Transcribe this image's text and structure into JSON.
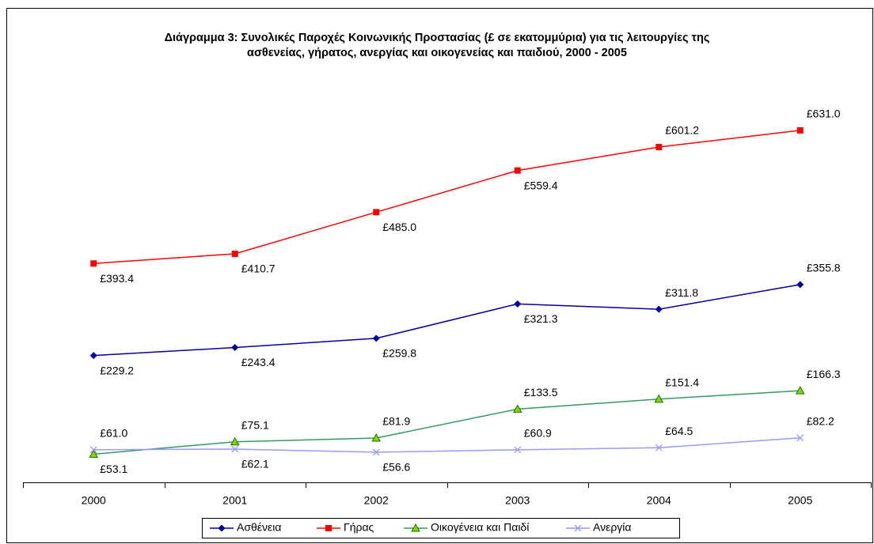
{
  "chart_data": {
    "type": "line",
    "title": [
      "Διάγραμμα 3: Συνολικές Παροχές Κοινωνικής Προστασίας (£ σε εκατομμύρια) για τις λειτουργίες της",
      "ασθενείας, γήρατος, ανεργίας και οικογενείας και παιδιού, 2000 - 2005"
    ],
    "categories": [
      "2000",
      "2001",
      "2002",
      "2003",
      "2004",
      "2005"
    ],
    "ylim": [
      0,
      700
    ],
    "series": [
      {
        "name": "Ασθένεια",
        "color": "#0000a0",
        "values": [
          229.2,
          243.4,
          259.8,
          321.3,
          311.8,
          355.8
        ],
        "value_labels": [
          "£229.2",
          "£243.4",
          "£259.8",
          "£321.3",
          "£311.8",
          "£355.8"
        ]
      },
      {
        "name": "Γήρας",
        "color": "#ff0000",
        "values": [
          393.4,
          410.7,
          485.0,
          559.4,
          601.2,
          631.0
        ],
        "value_labels": [
          "£393.4",
          "£410.7",
          "£485.0",
          "£559.4",
          "£601.2",
          "£631.0"
        ]
      },
      {
        "name": "Οικογένεια και Παιδί",
        "color": "#339966",
        "values": [
          53.1,
          75.1,
          81.9,
          133.5,
          151.4,
          166.3
        ],
        "value_labels": [
          "£53.1",
          "£75.1",
          "£81.9",
          "£133.5",
          "£151.4",
          "£166.3"
        ]
      },
      {
        "name": "Ανεργία",
        "color": "#9999ff",
        "values": [
          61.0,
          62.1,
          56.6,
          60.9,
          64.5,
          82.2
        ],
        "value_labels": [
          "£61.0",
          "£62.1",
          "£56.6",
          "£60.9",
          "£64.5",
          "£82.2"
        ]
      }
    ]
  }
}
